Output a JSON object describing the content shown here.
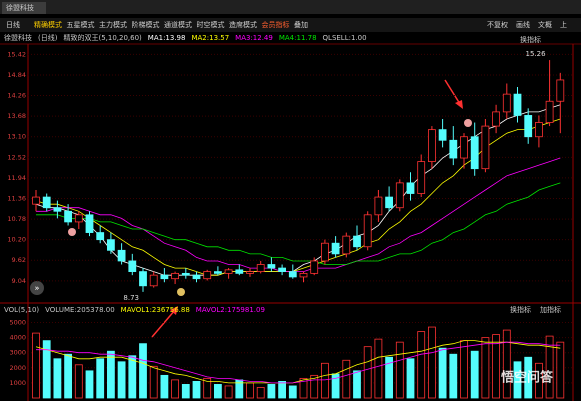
{
  "app": {
    "window_title": "徐盟科技",
    "tabs": [
      "日线",
      "精确模式",
      "五星模式",
      "主力模式",
      "阶梯模式",
      "通道模式",
      "时空模式",
      "造席模式",
      "会员指标",
      "叠加"
    ],
    "right_buttons": [
      "不复权",
      "画线",
      "文概",
      "上"
    ],
    "price_button": "换指标",
    "vol_buttons": [
      "换指标",
      "加指标"
    ],
    "watermark": "悟空问答"
  },
  "chart_data": [
    {
      "type": "candlestick",
      "title": "徐盟科技",
      "period": "(日线)",
      "indicator": "精致的双王(5,10,20,60)",
      "extra_legend": "QLSELL:1.00",
      "up_color": "#ff3232",
      "down_color": "#54fcfc",
      "open": [
        11.2,
        11.4,
        11.1,
        11.0,
        10.7,
        10.9,
        10.4,
        10.2,
        9.9,
        9.6,
        9.3,
        8.9,
        9.2,
        9.1,
        9.25,
        9.2,
        9.1,
        9.3,
        9.25,
        9.35,
        9.25,
        9.3,
        9.5,
        9.4,
        9.3,
        9.15,
        9.25,
        9.6,
        10.1,
        9.8,
        10.3,
        10.0,
        10.9,
        11.4,
        11.1,
        11.8,
        11.5,
        12.4,
        13.3,
        13.0,
        12.5,
        13.1,
        12.2,
        13.4,
        13.8,
        14.3,
        13.7,
        13.1,
        13.5,
        14.1
      ],
      "high": [
        11.6,
        11.5,
        11.3,
        11.2,
        11.0,
        11.0,
        10.6,
        10.4,
        10.1,
        9.8,
        9.4,
        9.3,
        9.4,
        9.3,
        9.4,
        9.3,
        9.35,
        9.45,
        9.4,
        9.5,
        9.4,
        9.6,
        9.7,
        9.5,
        9.5,
        9.3,
        9.7,
        10.2,
        10.3,
        10.4,
        10.6,
        11.0,
        11.6,
        11.7,
        11.9,
        12.1,
        12.6,
        13.4,
        13.6,
        13.4,
        13.2,
        13.5,
        13.6,
        14.0,
        14.6,
        14.5,
        13.9,
        13.7,
        15.26,
        14.9
      ],
      "low": [
        11.0,
        11.0,
        10.8,
        10.6,
        10.5,
        10.3,
        10.1,
        9.8,
        9.5,
        9.2,
        8.73,
        8.85,
        9.0,
        8.95,
        9.1,
        9.0,
        9.05,
        9.2,
        9.1,
        9.2,
        9.15,
        9.25,
        9.3,
        9.2,
        9.1,
        9.0,
        9.2,
        9.5,
        9.7,
        9.7,
        9.9,
        9.9,
        10.7,
        11.0,
        11.0,
        11.3,
        11.4,
        12.2,
        12.8,
        12.3,
        12.2,
        12.0,
        12.1,
        13.2,
        13.6,
        13.5,
        12.9,
        12.8,
        13.4,
        13.2
      ],
      "close": [
        11.4,
        11.1,
        11.0,
        10.7,
        10.9,
        10.4,
        10.2,
        9.9,
        9.6,
        9.3,
        8.9,
        9.2,
        9.1,
        9.25,
        9.2,
        9.1,
        9.3,
        9.25,
        9.35,
        9.25,
        9.3,
        9.5,
        9.4,
        9.3,
        9.15,
        9.25,
        9.6,
        10.1,
        9.8,
        10.3,
        10.0,
        10.9,
        11.4,
        11.1,
        11.8,
        11.5,
        12.4,
        13.3,
        13.0,
        12.5,
        13.1,
        12.2,
        13.4,
        13.8,
        14.3,
        13.7,
        13.1,
        13.5,
        14.1,
        14.7
      ],
      "series": [
        {
          "name": "MA1:13.98",
          "color": "#ffffff",
          "values": [
            11.2,
            11.1,
            11.1,
            11.0,
            10.9,
            10.6,
            10.3,
            9.9,
            9.6,
            9.5,
            9.4,
            9.3,
            9.2,
            9.2,
            9.2,
            9.2,
            9.2,
            9.2,
            9.3,
            9.3,
            9.3,
            9.3,
            9.3,
            9.3,
            9.3,
            9.5,
            9.6,
            9.8,
            9.9,
            10.1,
            10.3,
            10.4,
            10.6,
            11.0,
            11.3,
            11.7,
            12.0,
            12.2,
            12.5,
            12.7,
            12.9,
            13.1,
            13.3,
            13.4,
            13.6,
            13.7,
            13.8,
            13.8,
            13.9,
            14.0
          ]
        },
        {
          "name": "MA2:13.57",
          "color": "#ffff00",
          "values": [
            11.3,
            11.2,
            11.2,
            11.1,
            11.0,
            10.8,
            10.6,
            10.4,
            10.2,
            10.0,
            9.9,
            9.7,
            9.5,
            9.4,
            9.4,
            9.3,
            9.2,
            9.2,
            9.3,
            9.3,
            9.3,
            9.3,
            9.3,
            9.3,
            9.3,
            9.4,
            9.5,
            9.6,
            9.7,
            9.8,
            9.9,
            10.1,
            10.2,
            10.5,
            10.7,
            11.0,
            11.2,
            11.5,
            11.8,
            12.0,
            12.3,
            12.5,
            12.8,
            13.0,
            13.2,
            13.3,
            13.3,
            13.4,
            13.5,
            13.6
          ]
        },
        {
          "name": "MA3:12.49",
          "color": "#ff00ff",
          "values": [
            11.0,
            11.0,
            11.1,
            11.1,
            11.1,
            11.0,
            10.9,
            10.9,
            10.8,
            10.6,
            10.5,
            10.3,
            10.1,
            10.0,
            9.9,
            9.7,
            9.6,
            9.6,
            9.5,
            9.5,
            9.4,
            9.4,
            9.4,
            9.3,
            9.3,
            9.3,
            9.4,
            9.4,
            9.4,
            9.5,
            9.6,
            9.7,
            9.8,
            10.0,
            10.1,
            10.3,
            10.4,
            10.6,
            10.8,
            11.0,
            11.2,
            11.4,
            11.6,
            11.8,
            12.0,
            12.1,
            12.2,
            12.3,
            12.4,
            12.5
          ]
        },
        {
          "name": "MA4:11.78",
          "color": "#00e600",
          "values": [
            10.9,
            10.9,
            10.9,
            10.8,
            10.8,
            10.8,
            10.7,
            10.7,
            10.6,
            10.5,
            10.5,
            10.4,
            10.3,
            10.2,
            10.2,
            10.1,
            10.0,
            10.0,
            9.9,
            9.9,
            9.8,
            9.8,
            9.7,
            9.7,
            9.6,
            9.6,
            9.6,
            9.5,
            9.5,
            9.5,
            9.6,
            9.6,
            9.6,
            9.7,
            9.8,
            9.8,
            9.9,
            10.1,
            10.2,
            10.4,
            10.5,
            10.7,
            10.9,
            11.0,
            11.2,
            11.3,
            11.4,
            11.6,
            11.7,
            11.8
          ]
        }
      ],
      "annotations": [
        {
          "text": "15.26",
          "index": 48,
          "value": 15.26
        },
        {
          "text": "8.73",
          "index": 10,
          "value": 8.73
        }
      ],
      "ylim": [
        8.5,
        15.6
      ],
      "yticks": [
        {
          "value": 9.04,
          "label": "9.04"
        },
        {
          "value": 9.62,
          "label": "9.62"
        },
        {
          "value": 10.2,
          "label": "10.20"
        },
        {
          "value": 10.78,
          "label": "10.78"
        },
        {
          "value": 11.36,
          "label": "11.36"
        },
        {
          "value": 11.94,
          "label": "11.94"
        },
        {
          "value": 12.52,
          "label": "12.52"
        },
        {
          "value": 13.1,
          "label": "13.10"
        },
        {
          "value": 13.68,
          "label": "13.68"
        },
        {
          "value": 14.26,
          "label": "14.26"
        },
        {
          "value": 14.84,
          "label": "14.84"
        },
        {
          "value": 15.42,
          "label": "15.42"
        }
      ]
    },
    {
      "type": "bar",
      "title": "VOL(5,10)",
      "bar_name": "VOLUME:205378.00",
      "values": [
        4300,
        3800,
        2600,
        2900,
        2200,
        1800,
        2600,
        3100,
        2400,
        2800,
        3600,
        2100,
        1500,
        1200,
        900,
        1100,
        1300,
        900,
        800,
        1200,
        1000,
        700,
        900,
        1100,
        800,
        1300,
        1500,
        2300,
        1600,
        2500,
        1800,
        3400,
        3900,
        2700,
        3700,
        2600,
        4400,
        4700,
        3300,
        2900,
        3800,
        3100,
        4000,
        4200,
        4500,
        2400,
        2700,
        2300,
        4100,
        3700
      ],
      "series": [
        {
          "name": "MAVOL1:236756.88",
          "color": "#ffff00",
          "values": [
            3400,
            3200,
            3000,
            2800,
            2600,
            2600,
            2700,
            2700,
            2700,
            2500,
            2300,
            2000,
            1800,
            1600,
            1500,
            1300,
            1100,
            1100,
            1000,
            1000,
            1000,
            1000,
            1000,
            1000,
            1000,
            1200,
            1300,
            1500,
            1600,
            1900,
            2200,
            2400,
            2700,
            2800,
            2900,
            3000,
            3100,
            3300,
            3500,
            3600,
            3800,
            3800,
            3700,
            3700,
            3700,
            3600,
            3500,
            3500,
            3400,
            3300
          ]
        },
        {
          "name": "MAVOL2:175981.09",
          "color": "#ff00ff",
          "values": [
            3200,
            3200,
            3100,
            3100,
            3000,
            3000,
            2900,
            2900,
            2800,
            2700,
            2500,
            2400,
            2200,
            2000,
            1800,
            1600,
            1400,
            1300,
            1300,
            1200,
            1100,
            1100,
            1000,
            1000,
            1000,
            1100,
            1200,
            1200,
            1300,
            1500,
            1700,
            1900,
            2100,
            2300,
            2500,
            2700,
            2900,
            3000,
            3200,
            3300,
            3400,
            3500,
            3600,
            3600,
            3700,
            3700,
            3600,
            3600,
            3500,
            3500
          ]
        }
      ],
      "ylim": [
        0,
        5300
      ],
      "yticks": [
        1000,
        2000,
        3000,
        4000,
        5000
      ]
    }
  ]
}
